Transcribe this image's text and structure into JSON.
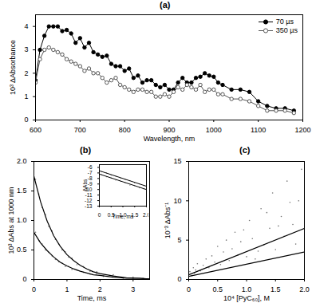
{
  "chart_data": [
    {
      "type": "line",
      "title": "(a)",
      "x_label": "Wavelength, nm",
      "y_label": "10³ ΔAbsorbance",
      "xlim": [
        600,
        1200
      ],
      "ylim": [
        0,
        4.5
      ],
      "xticks": [
        600,
        700,
        800,
        900,
        1000,
        1100,
        1200
      ],
      "yticks": [
        0,
        1,
        2,
        3,
        4
      ],
      "legend": "top-right",
      "x": [
        600,
        610,
        620,
        630,
        640,
        650,
        660,
        670,
        680,
        690,
        700,
        710,
        720,
        730,
        740,
        750,
        760,
        770,
        780,
        790,
        800,
        810,
        820,
        830,
        840,
        850,
        860,
        870,
        880,
        890,
        900,
        910,
        920,
        930,
        940,
        950,
        960,
        970,
        980,
        990,
        1000,
        1010,
        1020,
        1040,
        1060,
        1080,
        1100,
        1120,
        1140,
        1160,
        1180
      ],
      "series": [
        {
          "name": "70 µs",
          "color": "#000000",
          "marker": "circle",
          "values": [
            1.7,
            3.0,
            3.6,
            4.0,
            4.0,
            4.0,
            3.8,
            3.85,
            3.7,
            3.3,
            3.5,
            3.1,
            3.3,
            2.9,
            2.8,
            2.7,
            2.75,
            2.4,
            2.3,
            2.3,
            2.1,
            2.2,
            1.8,
            1.9,
            1.6,
            1.7,
            1.7,
            1.5,
            1.4,
            1.5,
            1.3,
            1.3,
            1.6,
            1.8,
            1.6,
            1.6,
            1.8,
            1.85,
            2.0,
            1.9,
            1.85,
            1.6,
            1.5,
            1.3,
            1.3,
            1.2,
            0.8,
            0.6,
            0.5,
            0.5,
            0.4
          ]
        },
        {
          "name": "350 µs",
          "color": "#555555",
          "marker": "open_circle",
          "values": [
            1.6,
            2.6,
            3.0,
            3.1,
            3.0,
            2.9,
            2.8,
            2.6,
            2.5,
            2.4,
            2.3,
            2.1,
            2.2,
            2.0,
            2.0,
            1.8,
            1.6,
            1.7,
            1.8,
            1.5,
            1.4,
            1.3,
            1.2,
            1.3,
            1.3,
            1.2,
            1.2,
            1.0,
            1.0,
            1.1,
            1.0,
            1.2,
            1.4,
            1.3,
            1.5,
            1.4,
            1.3,
            1.5,
            1.2,
            1.3,
            1.3,
            1.1,
            1.1,
            0.9,
            0.9,
            0.8,
            0.6,
            0.4,
            0.4,
            0.4,
            0.3
          ]
        }
      ]
    },
    {
      "type": "scatter",
      "title": "(b)",
      "x_label": "Time, ms",
      "y_label": "10³ ΔAbs at 1000 nm",
      "xlim": [
        0,
        3.5
      ],
      "ylim": [
        0,
        2
      ],
      "xticks": [
        0,
        1,
        2,
        3
      ],
      "yticks": [
        0,
        0.5,
        {
          "value": 1,
          "label": "1.0"
        },
        1.5,
        {
          "value": 2,
          "label": "2.0"
        }
      ],
      "series": [
        {
          "type": "scatter",
          "color": "#777777",
          "x": [
            0.05,
            0.15,
            0.25,
            0.35,
            0.45,
            0.55,
            0.65,
            0.75,
            0.85,
            0.95,
            1.05,
            1.15,
            1.3,
            1.5,
            1.7,
            1.9,
            2.1,
            2.4,
            2.7,
            3.0,
            3.3
          ],
          "values": [
            1.7,
            1.45,
            1.22,
            1.1,
            0.9,
            0.82,
            0.68,
            0.6,
            0.5,
            0.47,
            0.38,
            0.36,
            0.25,
            0.22,
            0.14,
            0.13,
            0.06,
            0.08,
            0.02,
            0.04,
            0.0
          ]
        },
        {
          "type": "scatter",
          "color": "#777777",
          "x": [
            0.05,
            0.15,
            0.25,
            0.35,
            0.45,
            0.55,
            0.65,
            0.75,
            0.85,
            0.95,
            1.05,
            1.15,
            1.3,
            1.5,
            1.7,
            1.9,
            2.1,
            2.4,
            2.7,
            3.0,
            3.3
          ],
          "values": [
            0.8,
            0.66,
            0.6,
            0.5,
            0.46,
            0.4,
            0.34,
            0.3,
            0.28,
            0.22,
            0.22,
            0.17,
            0.16,
            0.12,
            0.09,
            0.1,
            0.05,
            0.06,
            0.03,
            0.01,
            0.02
          ]
        },
        {
          "type": "line",
          "color": "#000000",
          "x": [
            0,
            0.2,
            0.4,
            0.6,
            0.8,
            1.0,
            1.2,
            1.4,
            1.6,
            1.8,
            2.0,
            2.4,
            2.8,
            3.2,
            3.5
          ],
          "values": [
            1.75,
            1.32,
            0.99,
            0.74,
            0.56,
            0.42,
            0.32,
            0.24,
            0.18,
            0.13,
            0.1,
            0.06,
            0.03,
            0.02,
            0.01
          ]
        },
        {
          "type": "line",
          "color": "#000000",
          "x": [
            0,
            0.2,
            0.4,
            0.6,
            0.8,
            1.0,
            1.2,
            1.4,
            1.6,
            1.8,
            2.0,
            2.4,
            2.8,
            3.2,
            3.5
          ],
          "values": [
            0.8,
            0.62,
            0.49,
            0.38,
            0.29,
            0.23,
            0.18,
            0.14,
            0.11,
            0.08,
            0.07,
            0.04,
            0.02,
            0.02,
            0.01
          ]
        }
      ]
    },
    {
      "type": "scatter",
      "title": "(c)",
      "x_label": "10⁴ [PyC₆₀], M",
      "y_label": "10⁻³ ΔAbs⁻¹",
      "xlim": [
        0,
        2
      ],
      "ylim": [
        0,
        15
      ],
      "xticks": [
        0,
        0.5,
        {
          "value": 1,
          "label": "1.0"
        },
        1.5,
        {
          "value": 2,
          "label": "2.0"
        }
      ],
      "yticks": [
        0,
        5,
        10,
        15
      ],
      "series": [
        {
          "type": "scatter",
          "color": "#777777",
          "x": [
            0.02,
            0.05,
            0.08,
            0.1,
            0.12,
            0.15,
            0.2,
            0.25,
            0.3,
            0.35,
            0.4,
            0.45,
            0.5,
            0.55,
            0.6,
            0.65,
            0.7,
            0.8,
            0.85,
            0.9,
            1.0,
            1.05,
            1.1,
            1.2,
            1.25,
            1.3,
            1.4,
            1.45,
            1.5,
            1.6,
            1.65,
            1.7,
            1.8,
            1.85,
            1.9,
            1.95,
            0.75,
            0.95,
            1.15,
            1.35,
            1.55,
            1.75
          ],
          "values": [
            1.0,
            0.5,
            1.5,
            0.8,
            1.2,
            2.0,
            1.1,
            1.8,
            2.6,
            1.5,
            3.0,
            2.2,
            4.2,
            1.9,
            3.5,
            5.0,
            2.4,
            6.0,
            3.1,
            4.8,
            2.9,
            7.5,
            5.2,
            3.6,
            9.0,
            4.4,
            6.5,
            11.0,
            3.8,
            8.0,
            5.5,
            12.5,
            7.0,
            4.5,
            10.0,
            14.0,
            3.9,
            6.3,
            2.6,
            8.5,
            6.8,
            9.8
          ]
        },
        {
          "type": "line",
          "color": "#000000",
          "x": [
            0,
            2
          ],
          "values": [
            0.6,
            6.5
          ]
        },
        {
          "type": "line",
          "color": "#000000",
          "x": [
            0,
            2
          ],
          "values": [
            0.4,
            3.5
          ]
        }
      ]
    },
    {
      "type": "scatter",
      "x_label": "Time, ms",
      "y_label": "ΔAbs",
      "xlim": [
        0,
        2
      ],
      "ylim": [
        -13,
        -5.5
      ],
      "xticks": [
        0,
        0.5,
        {
          "value": 1,
          "label": "1.0"
        },
        1.5,
        {
          "value": 2,
          "label": "2.0"
        }
      ],
      "yticks": [
        -6,
        -7,
        -8,
        -9,
        -10,
        -11,
        -12,
        -13
      ],
      "series": [
        {
          "type": "scatter",
          "color": "#777777",
          "x": [
            0.1,
            0.3,
            0.5,
            0.7,
            0.9,
            1.1,
            1.3,
            1.5,
            1.7,
            1.9
          ],
          "values": [
            -6.8,
            -7.0,
            -7.4,
            -7.6,
            -8.0,
            -8.2,
            -8.4,
            -8.8,
            -9.0,
            -9.3
          ]
        },
        {
          "type": "scatter",
          "color": "#777777",
          "x": [
            0.1,
            0.3,
            0.5,
            0.7,
            0.9,
            1.1,
            1.3,
            1.5,
            1.7,
            1.9
          ],
          "values": [
            -7.3,
            -7.7,
            -7.9,
            -8.3,
            -8.5,
            -8.8,
            -9.2,
            -9.3,
            -9.7,
            -9.9
          ]
        },
        {
          "type": "line",
          "color": "#000000",
          "x": [
            0,
            2
          ],
          "values": [
            -6.6,
            -9.4
          ]
        },
        {
          "type": "line",
          "color": "#000000",
          "x": [
            0,
            2
          ],
          "values": [
            -7.2,
            -10.0
          ]
        }
      ]
    }
  ]
}
